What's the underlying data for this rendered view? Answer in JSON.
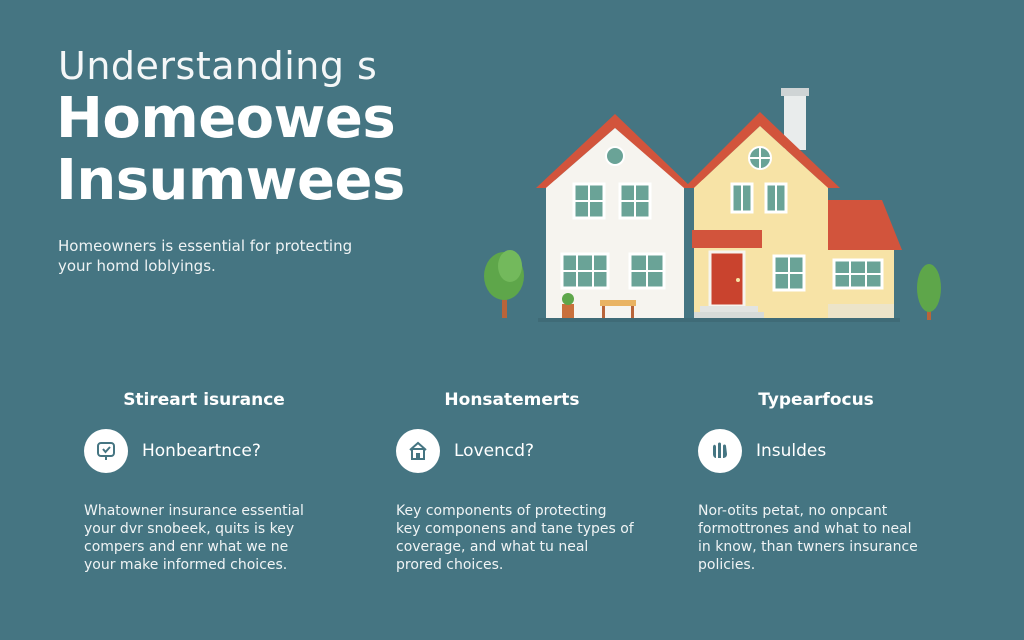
{
  "hero": {
    "kicker": "Understanding s",
    "title_lines": [
      "Homeowes",
      "Insumwees"
    ],
    "description_lines": [
      "Homeowners is essential for protecting",
      "your homd loblyings."
    ]
  },
  "columns": [
    {
      "heading": "Stireart isurance",
      "icon": "shield-check-icon",
      "feature_label": "Honbeartnce?",
      "body_lines": [
        "Whatowner insurance essential",
        "your dvr snobeek, quits is key",
        "compers and enr what we ne",
        "your make informed choices."
      ]
    },
    {
      "heading": "Honsatemerts",
      "icon": "house-icon",
      "feature_label": "Lovencd?",
      "body_lines": [
        "Key components of protecting",
        "key componens and tane types of",
        "coverage, and what tu neal",
        "prored choices."
      ]
    },
    {
      "heading": "Typearfocus",
      "icon": "hands-icon",
      "feature_label": "Insuldes",
      "body_lines": [
        "Nor-otits petat, no onpcant",
        "formottrones and what to neal",
        "in know, than twners insurance",
        "policies."
      ]
    }
  ],
  "colors": {
    "background": "#457582",
    "roof": "#d2543c",
    "house_left_wall": "#f6f4ef",
    "house_right_wall": "#f7e3a6",
    "window": "#6aa397",
    "door": "#c9432e",
    "tree": "#5ea64a"
  }
}
